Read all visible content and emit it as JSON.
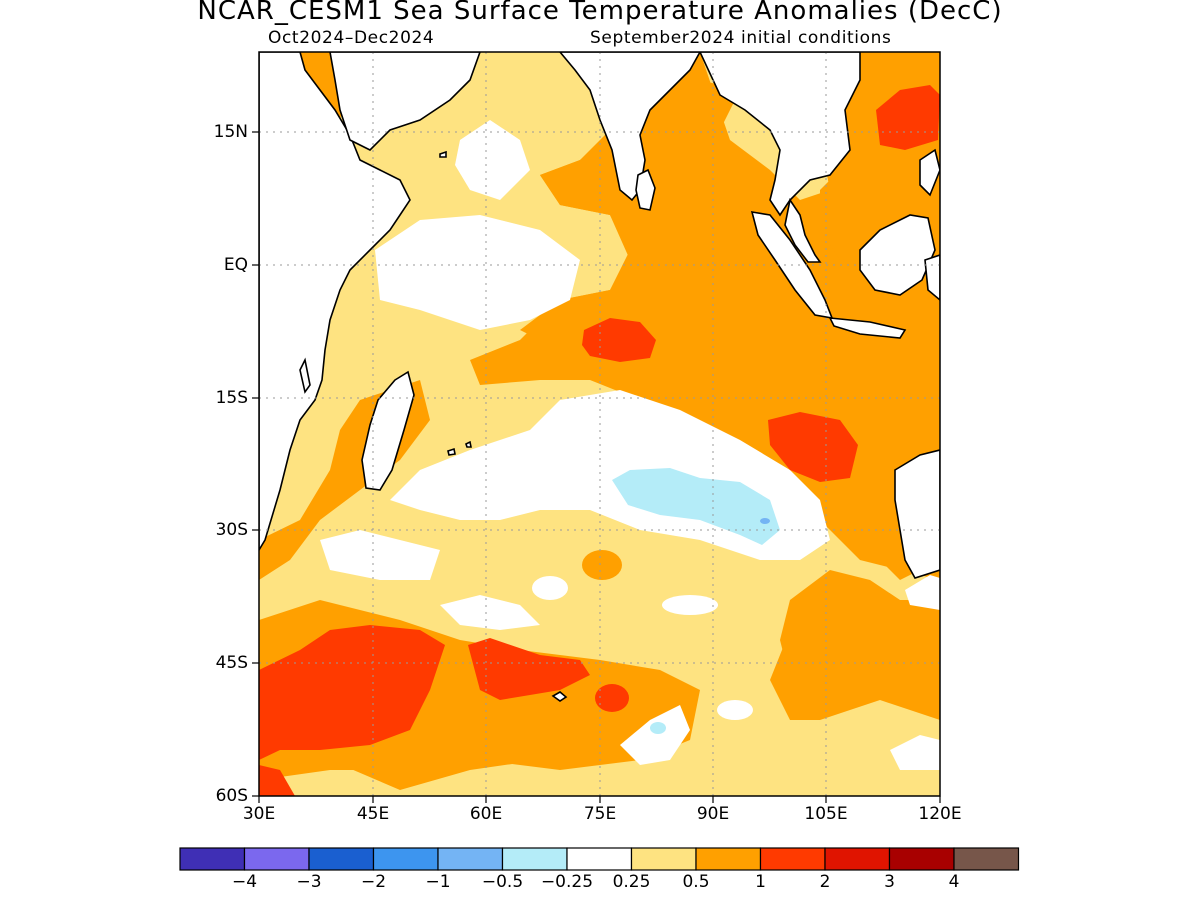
{
  "header": {
    "title": "NCAR_CESM1 Sea Surface Temperature Anomalies (DecC)",
    "period": "Oct2024–Dec2024",
    "init": "September2024 initial conditions"
  },
  "map": {
    "region": "Indian Ocean",
    "lat_range": [
      -60,
      24
    ],
    "lon_range": [
      30,
      120
    ],
    "lat_labels": [
      "15N",
      "EQ",
      "15S",
      "30S",
      "45S",
      "60S"
    ],
    "lon_labels": [
      "30E",
      "45E",
      "60E",
      "75E",
      "90E",
      "105E",
      "120E"
    ],
    "grid": "dotted",
    "coastlines": true
  },
  "colorbar": {
    "colors": [
      "#3f2fb5",
      "#7b68ee",
      "#1a5fd0",
      "#3d95ef",
      "#74b4f4",
      "#b4ecf8",
      "#ffffff",
      "#fee381",
      "#ffa000",
      "#ff3a00",
      "#e01400",
      "#a80000",
      "#77564a"
    ],
    "labels": [
      "−4",
      "−3",
      "−2",
      "−1",
      "−0.5",
      "−0.25",
      "0.25",
      "0.5",
      "1",
      "2",
      "3",
      "4"
    ]
  },
  "palette": {
    "white": "#ffffff",
    "light_yellow": "#fee381",
    "orange": "#ffa000",
    "red_orange": "#ff3a00",
    "cyan": "#b4ecf8",
    "blue": "#74b4f4"
  }
}
